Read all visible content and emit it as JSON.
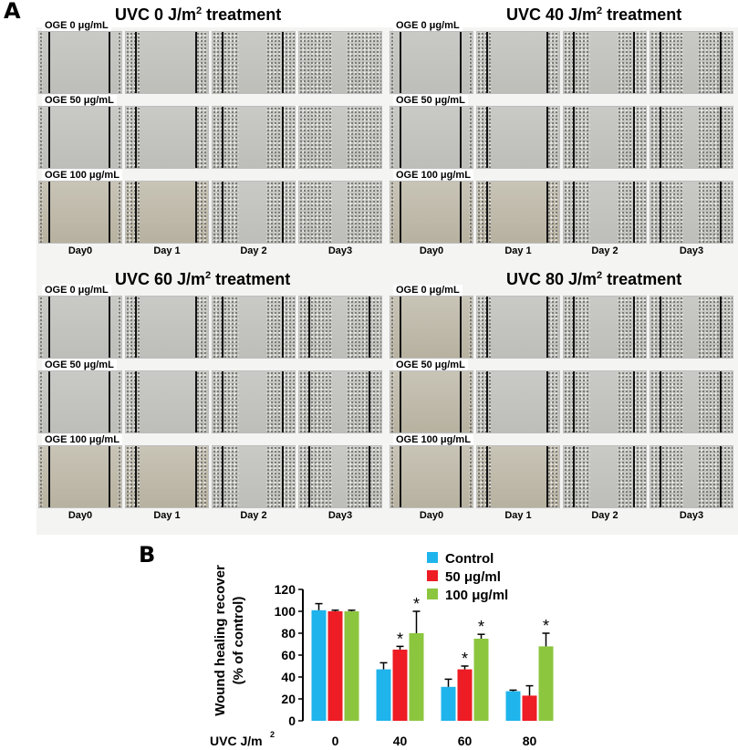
{
  "panel_a": {
    "letter": "A",
    "quadrants": [
      {
        "title": "UVC 0 J/m",
        "title_sup": "2",
        "title_suffix": " treatment"
      },
      {
        "title": "UVC 40 J/m",
        "title_sup": "2",
        "title_suffix": " treatment"
      },
      {
        "title": "UVC 60 J/m",
        "title_sup": "2",
        "title_suffix": " treatment"
      },
      {
        "title": "UVC 80 J/m",
        "title_sup": "2",
        "title_suffix": " treatment"
      }
    ],
    "row_labels": [
      "OGE 0 μg/mL",
      "OGE 50 μg/mL",
      "OGE 100 μg/mL"
    ],
    "day_labels": [
      "Day0",
      "Day 1",
      "Day 2",
      "Day3"
    ]
  },
  "panel_b": {
    "letter": "B"
  },
  "chart_data": {
    "type": "bar",
    "ylabel_line1": "Wound healing recover",
    "ylabel_line2": "(% of control)",
    "xlabel": "UVC J/m",
    "xlabel_sup": "2",
    "categories": [
      "0",
      "40",
      "60",
      "80"
    ],
    "ylim": [
      0,
      120
    ],
    "yticks": [
      "0",
      "20",
      "40",
      "60",
      "80",
      "100",
      "120"
    ],
    "series": [
      {
        "name": "Control",
        "color": "#1fb4ec",
        "values": [
          101,
          47,
          31,
          27
        ],
        "errors": [
          6,
          6,
          7,
          1
        ]
      },
      {
        "name": "50 μg/ml",
        "color": "#ee1c24",
        "values": [
          100,
          65,
          47,
          23
        ],
        "errors": [
          1,
          3,
          3,
          9
        ]
      },
      {
        "name": "100 μg/ml",
        "color": "#8cc63f",
        "values": [
          100,
          80,
          75,
          68
        ],
        "errors": [
          1,
          20,
          4,
          12
        ]
      }
    ],
    "significance": [
      {
        "series": 1,
        "category": 1,
        "mark": "*"
      },
      {
        "series": 2,
        "category": 1,
        "mark": "*"
      },
      {
        "series": 1,
        "category": 2,
        "mark": "*"
      },
      {
        "series": 2,
        "category": 2,
        "mark": "*"
      },
      {
        "series": 2,
        "category": 3,
        "mark": "*"
      }
    ]
  }
}
